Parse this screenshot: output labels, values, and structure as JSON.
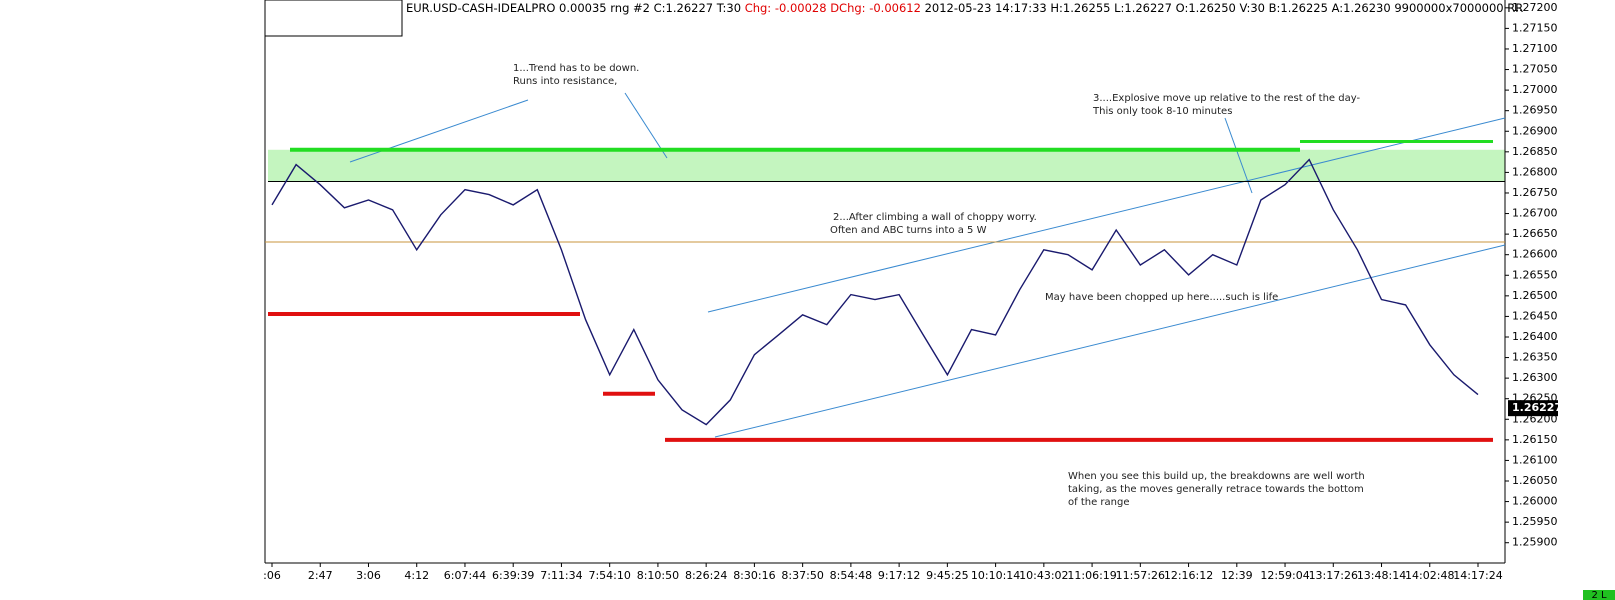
{
  "chart_data": {
    "type": "line",
    "title_parts": [
      {
        "text": "EUR.USD-CASH-IDEALPRO  0.00035 rng  #2 C:1.26227 T:30",
        "color": "#000000"
      },
      {
        "text": "Chg: -0.00028",
        "color": "#e00000"
      },
      {
        "text": "DChg: -0.00612",
        "color": "#e00000"
      },
      {
        "text": "2012-05-23 14:17:33 H:1.26255 L:1.26227 O:1.26250 V:30 B:1.26225 A:1.26230 9900000x7000000 RR",
        "color": "#000000"
      }
    ],
    "categories": [
      ":06",
      null,
      "2:47",
      null,
      "3:06",
      null,
      "4:12",
      null,
      "6:07:44",
      null,
      "6:39:39",
      null,
      "7:11:34",
      null,
      "7:54:10",
      null,
      "8:10:50",
      null,
      "8:26:24",
      null,
      "8:30:16",
      null,
      "8:37:50",
      null,
      "8:54:48",
      null,
      "9:17:12",
      null,
      "9:45:25",
      null,
      "10:10:14",
      null,
      "10:43:02",
      null,
      "11:06:19",
      null,
      "11:57:26",
      null,
      "12:16:12",
      null,
      "12:39",
      null,
      "12:59:04",
      null,
      "13:17:26",
      null,
      "13:48:14",
      null,
      "14:02:48",
      null,
      "14:17:24",
      null
    ],
    "series": [
      {
        "color": "#1a1a6e",
        "values": [
          1.26721,
          1.26819,
          1.2677,
          1.26714,
          1.26733,
          1.26709,
          1.26612,
          1.26697,
          1.26758,
          1.26746,
          1.26721,
          1.26758,
          1.26612,
          1.26442,
          1.26308,
          1.26418,
          1.26296,
          1.26223,
          1.26187,
          1.26247,
          1.26357,
          1.26405,
          1.26454,
          1.2643,
          1.26503,
          1.26491,
          1.26503,
          1.26405,
          1.26308,
          1.26418,
          1.26405,
          1.26515,
          1.26612,
          1.266,
          1.26563,
          1.2666,
          1.26575,
          1.26612,
          1.26551,
          1.266,
          1.26575,
          1.26733,
          1.2677,
          1.26831,
          1.26709,
          1.26612,
          1.26491,
          1.26478,
          1.26381,
          1.26308,
          1.2626,
          null
        ]
      }
    ],
    "ylim": [
      1.25858,
      1.27219
    ],
    "yticks": [
      {
        "value": 1.272,
        "label": "1.27200"
      },
      {
        "value": 1.2715,
        "label": "1.27150"
      },
      {
        "value": 1.271,
        "label": "1.27100"
      },
      {
        "value": 1.2705,
        "label": "1.27050"
      },
      {
        "value": 1.27,
        "label": "1.27000"
      },
      {
        "value": 1.2695,
        "label": "1.26950"
      },
      {
        "value": 1.269,
        "label": "1.26900"
      },
      {
        "value": 1.2685,
        "label": "1.26850"
      },
      {
        "value": 1.268,
        "label": "1.26800"
      },
      {
        "value": 1.2675,
        "label": "1.26750"
      },
      {
        "value": 1.267,
        "label": "1.26700"
      },
      {
        "value": 1.2665,
        "label": "1.26650"
      },
      {
        "value": 1.266,
        "label": "1.26600"
      },
      {
        "value": 1.2655,
        "label": "1.26550"
      },
      {
        "value": 1.265,
        "label": "1.26500"
      },
      {
        "value": 1.2645,
        "label": "1.26450"
      },
      {
        "value": 1.264,
        "label": "1.26400"
      },
      {
        "value": 1.2635,
        "label": "1.26350"
      },
      {
        "value": 1.263,
        "label": "1.26300"
      },
      {
        "value": 1.2625,
        "label": "1.26250"
      },
      {
        "value": 1.262,
        "label": "1.26200"
      },
      {
        "value": 1.2615,
        "label": "1.26150"
      },
      {
        "value": 1.261,
        "label": "1.26100"
      },
      {
        "value": 1.2605,
        "label": "1.26050"
      },
      {
        "value": 1.26,
        "label": "1.26000"
      },
      {
        "value": 1.2595,
        "label": "1.25950"
      },
      {
        "value": 1.259,
        "label": "1.25900"
      }
    ],
    "grid": false,
    "band": {
      "values": [
        1.26778,
        1.26855
      ],
      "color": "#c4f5bf"
    },
    "levels": [
      {
        "value": 1.26855,
        "color": "#22dd22"
      },
      {
        "value": 1.26875,
        "color": "#22dd22"
      },
      {
        "value": 1.26778,
        "color": "#000000"
      },
      {
        "value": 1.26631,
        "color": "#c8963c"
      },
      {
        "value": 1.26456,
        "color": "#e01010"
      },
      {
        "value": 1.26262,
        "color": "#e01010"
      },
      {
        "value": 1.2615,
        "color": "#e01010"
      }
    ],
    "last_label": {
      "value": 1.26227,
      "label": "1.26227"
    },
    "corner_label": "2 L",
    "annotations": [
      "1...Trend has to be down.",
      "Runs into resistance,",
      "3....Explosive move up relative to the rest of the day-",
      "This only took 8-10 minutes",
      "2...After climbing a wall of choppy worry.",
      "Often and ABC turns into a 5 W",
      "May have been chopped up here.....such is life",
      "When you see this build up, the breakdowns are well worth",
      "taking, as the moves generally retrace towards the bottom",
      "of the range"
    ]
  }
}
